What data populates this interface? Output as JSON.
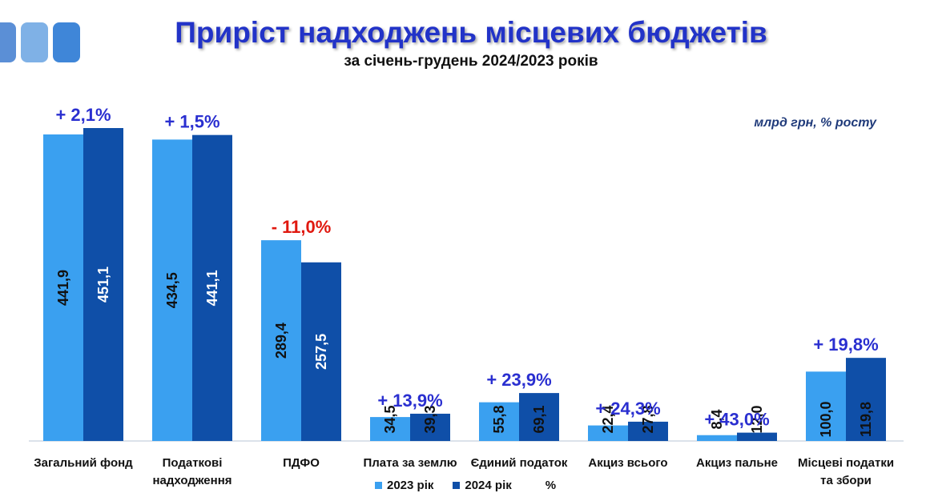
{
  "title": "Приріст надходжень місцевих бюджетів",
  "subtitle": "за січень-грудень 2024/2023 років",
  "units_note": "млрд грн, % росту",
  "legend": {
    "series_2023": "2023 рік",
    "series_2024": "2024 рік",
    "pct_label": "%"
  },
  "colors": {
    "series_2023": "#3aa0f0",
    "series_2024": "#0f4fa8",
    "growth_positive": "#2a2fd0",
    "growth_negative": "#e0180f",
    "title": "#2233c8"
  },
  "logo_icon": "three-rounded-squares-logo",
  "chart_data": {
    "type": "bar",
    "categories": [
      [
        "Загальний фонд"
      ],
      [
        "Податкові",
        "надходження"
      ],
      [
        "ПДФО"
      ],
      [
        "Плата за землю"
      ],
      [
        "Єдиний податок"
      ],
      [
        "Акциз всього"
      ],
      [
        "Акциз пальне"
      ],
      [
        "Місцеві податки",
        "та збори"
      ]
    ],
    "series": [
      {
        "name": "2023 рік",
        "values": [
          441.9,
          434.5,
          289.4,
          34.5,
          55.8,
          22.4,
          8.4,
          100.0
        ],
        "labels": [
          "441,9",
          "434,5",
          "289,4",
          "34,5",
          "55,8",
          "22,4",
          "8,4",
          "100,0"
        ]
      },
      {
        "name": "2024 рік",
        "values": [
          451.1,
          441.1,
          257.5,
          39.3,
          69.1,
          27.8,
          12.0,
          119.8
        ],
        "labels": [
          "451,1",
          "441,1",
          "257,5",
          "39,3",
          "69,1",
          "27,8",
          "12,0",
          "119,8"
        ]
      }
    ],
    "growth_labels": [
      "+ 2,1%",
      "+ 1,5%",
      "- 11,0%",
      "+ 13,9%",
      "+ 23,9%",
      "+ 24,3%",
      "+ 43,0%",
      "+ 19,8%"
    ],
    "growth_sign": [
      "positive",
      "positive",
      "negative",
      "positive",
      "positive",
      "positive",
      "positive",
      "positive"
    ],
    "ylim": [
      0,
      451.1
    ],
    "grid": false,
    "legend_position": "bottom"
  }
}
